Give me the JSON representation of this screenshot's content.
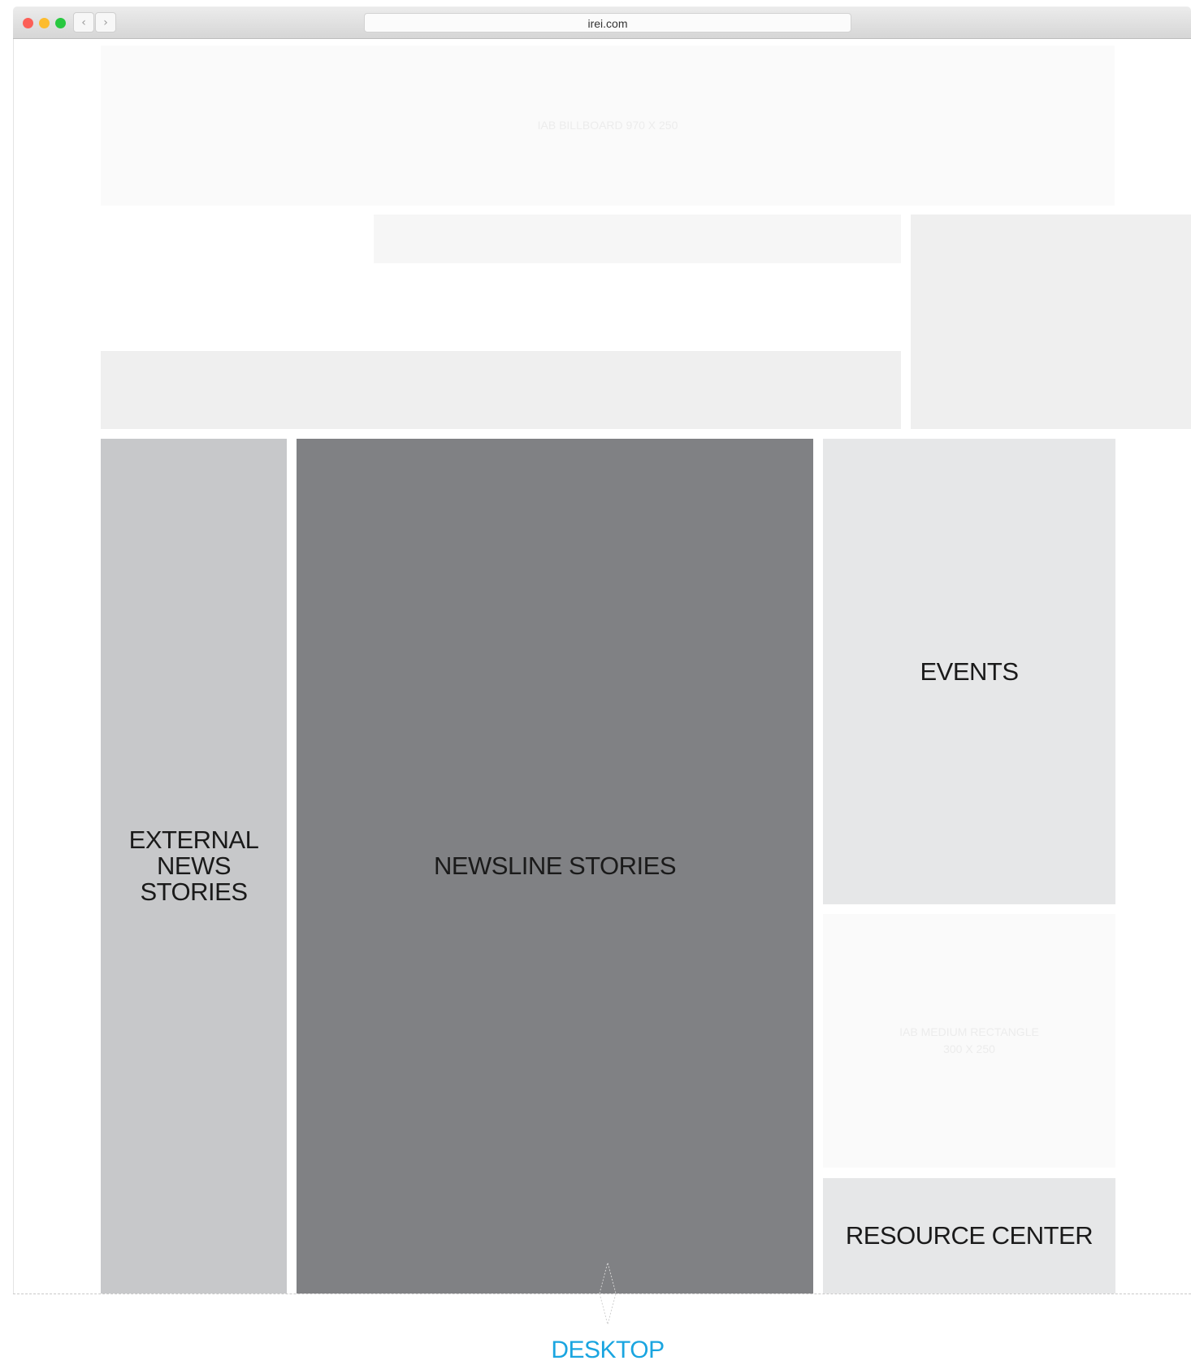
{
  "browser": {
    "url": "irei.com",
    "back_icon": "‹",
    "forward_icon": "›",
    "traffic_lights": {
      "close": "#fc5f57",
      "minimize": "#fdbc2e",
      "zoom": "#28c840"
    }
  },
  "billboard": {
    "label": "IAB BILLBOARD 970 X 250"
  },
  "external_news": {
    "label": "EXTERNAL NEWS STORIES"
  },
  "newsline": {
    "label": "NEWSLINE STORIES"
  },
  "events": {
    "label": "EVENTS"
  },
  "medium_rectangle": {
    "line1": "IAB MEDIUM RECTANGLE",
    "line2": "300 X 250"
  },
  "resource_center": {
    "label": "RESOURCE CENTER"
  },
  "footer": {
    "label": "DESKTOP",
    "accent_color": "#1aa5e0"
  }
}
